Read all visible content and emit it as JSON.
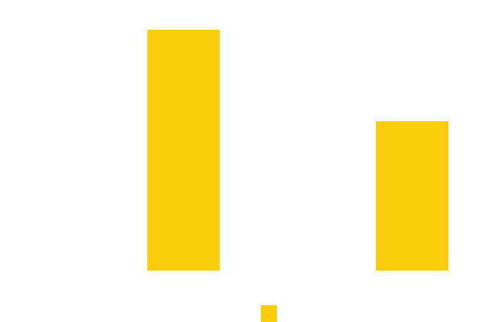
{
  "chart_data": {
    "type": "bar",
    "categories": [
      null,
      null,
      null
    ],
    "values": [
      100,
      null,
      62
    ],
    "color": "#f9cc0c",
    "ylim": [
      0,
      100
    ],
    "legend": true
  }
}
